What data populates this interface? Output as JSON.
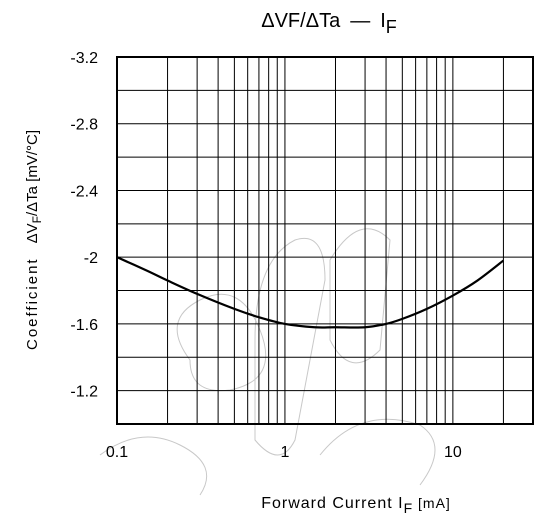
{
  "chart_data": {
    "type": "line",
    "title": {
      "main": "ΔVF/ΔTa",
      "dash": "—",
      "sym": "I",
      "sub": "F"
    },
    "xlabel": {
      "main": "Forward Current I",
      "sub": "F",
      "unit": " [mA]"
    },
    "ylabel": {
      "word": "Coefficient",
      "main": "ΔV",
      "sub": "F",
      "rest": "/ΔTa [mV/°C]"
    },
    "x_scale": "log",
    "xlim": [
      0.1,
      30
    ],
    "ylim": [
      -1.0,
      -3.2
    ],
    "x_ticks": [
      {
        "value": 0.1,
        "label": "0.1"
      },
      {
        "value": 1,
        "label": "1"
      },
      {
        "value": 10,
        "label": "10"
      }
    ],
    "y_ticks": [
      {
        "value": -3.2,
        "label": "-3.2"
      },
      {
        "value": -2.8,
        "label": "-2.8"
      },
      {
        "value": -2.4,
        "label": "-2.4"
      },
      {
        "value": -2.0,
        "label": "-2"
      },
      {
        "value": -1.6,
        "label": "-1.6"
      },
      {
        "value": -1.2,
        "label": "-1.2"
      }
    ],
    "y_grid_step": 0.2,
    "grid": true,
    "series": [
      {
        "x": [
          0.1,
          0.15,
          0.2,
          0.3,
          0.5,
          0.7,
          1.0,
          1.5,
          2.0,
          3.0,
          4.0,
          5.0,
          7.0,
          10.0,
          14.0,
          20.0
        ],
        "y": [
          -2.0,
          -1.92,
          -1.86,
          -1.78,
          -1.69,
          -1.64,
          -1.6,
          -1.58,
          -1.58,
          -1.58,
          -1.6,
          -1.63,
          -1.69,
          -1.77,
          -1.86,
          -1.98
        ]
      }
    ],
    "colors": {
      "line": "#000000",
      "grid": "#000000",
      "watermark": "#c8c8c8"
    }
  }
}
